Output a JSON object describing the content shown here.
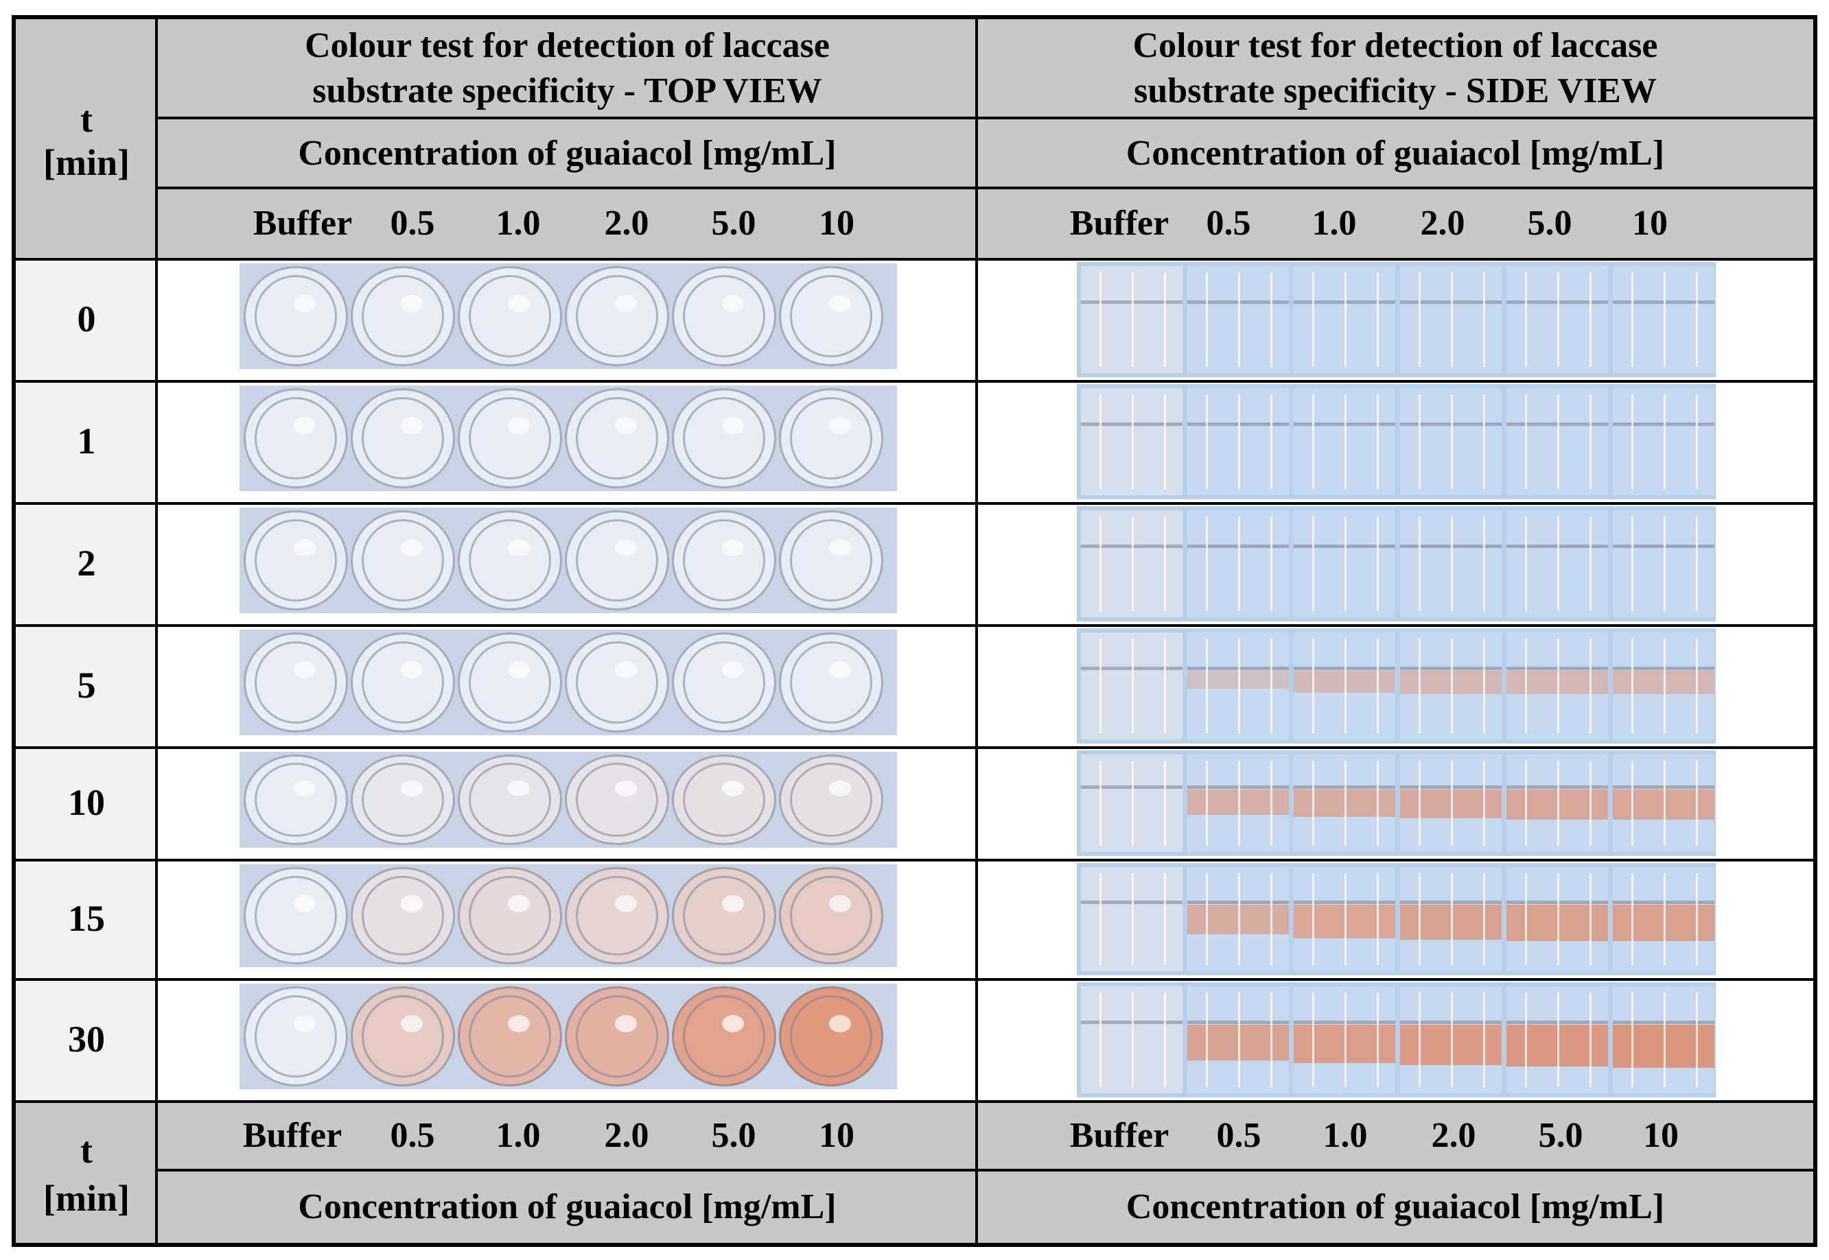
{
  "header": {
    "t_label": "t",
    "min_label": "[min]",
    "top_view_title_line1": "Colour test for detection of laccase",
    "top_view_title_line2": "substrate specificity - TOP VIEW",
    "side_view_title_line1": "Colour test for detection of laccase",
    "side_view_title_line2": "substrate specificity - SIDE VIEW",
    "concentration_label": "Concentration of guaiacol [mg/mL]"
  },
  "columns": [
    "Buffer",
    "0.5",
    "1.0",
    "2.0",
    "5.0",
    "10"
  ],
  "rows": [
    {
      "t": "0",
      "top_tint": [
        0,
        0,
        0,
        0,
        0,
        0
      ],
      "side_tint": [
        0,
        0,
        0,
        0,
        0,
        0
      ]
    },
    {
      "t": "1",
      "top_tint": [
        0,
        0,
        0,
        0,
        0,
        0
      ],
      "side_tint": [
        0,
        0,
        0,
        0,
        0,
        0
      ]
    },
    {
      "t": "2",
      "top_tint": [
        0,
        0,
        0,
        0,
        0,
        0
      ],
      "side_tint": [
        0,
        0,
        0,
        0,
        0,
        0
      ]
    },
    {
      "t": "5",
      "top_tint": [
        0,
        0,
        0,
        0,
        0,
        0
      ],
      "side_tint": [
        0,
        0.1,
        0.25,
        0.3,
        0.3,
        0.3
      ]
    },
    {
      "t": "10",
      "top_tint": [
        0,
        0.05,
        0.08,
        0.1,
        0.12,
        0.12
      ],
      "side_tint": [
        0,
        0.45,
        0.55,
        0.6,
        0.65,
        0.65
      ]
    },
    {
      "t": "15",
      "top_tint": [
        0,
        0.12,
        0.2,
        0.25,
        0.3,
        0.35
      ],
      "side_tint": [
        0,
        0.55,
        0.7,
        0.75,
        0.8,
        0.8
      ]
    },
    {
      "t": "30",
      "top_tint": [
        0,
        0.35,
        0.55,
        0.6,
        0.75,
        0.85
      ],
      "side_tint": [
        0,
        0.75,
        0.85,
        0.9,
        0.95,
        1.0
      ]
    }
  ],
  "footer": {
    "t_label": "t",
    "min_label": "[min]",
    "concentration_label": "Concentration of guaiacol [mg/mL]"
  },
  "colors": {
    "header_grey": "#c8c8c8",
    "time_column": "#f2f2f2",
    "top_plate_blue": "#c9d3e6",
    "side_plate_blue": "#b8cfe9",
    "product_orange": "#e08a6a"
  }
}
